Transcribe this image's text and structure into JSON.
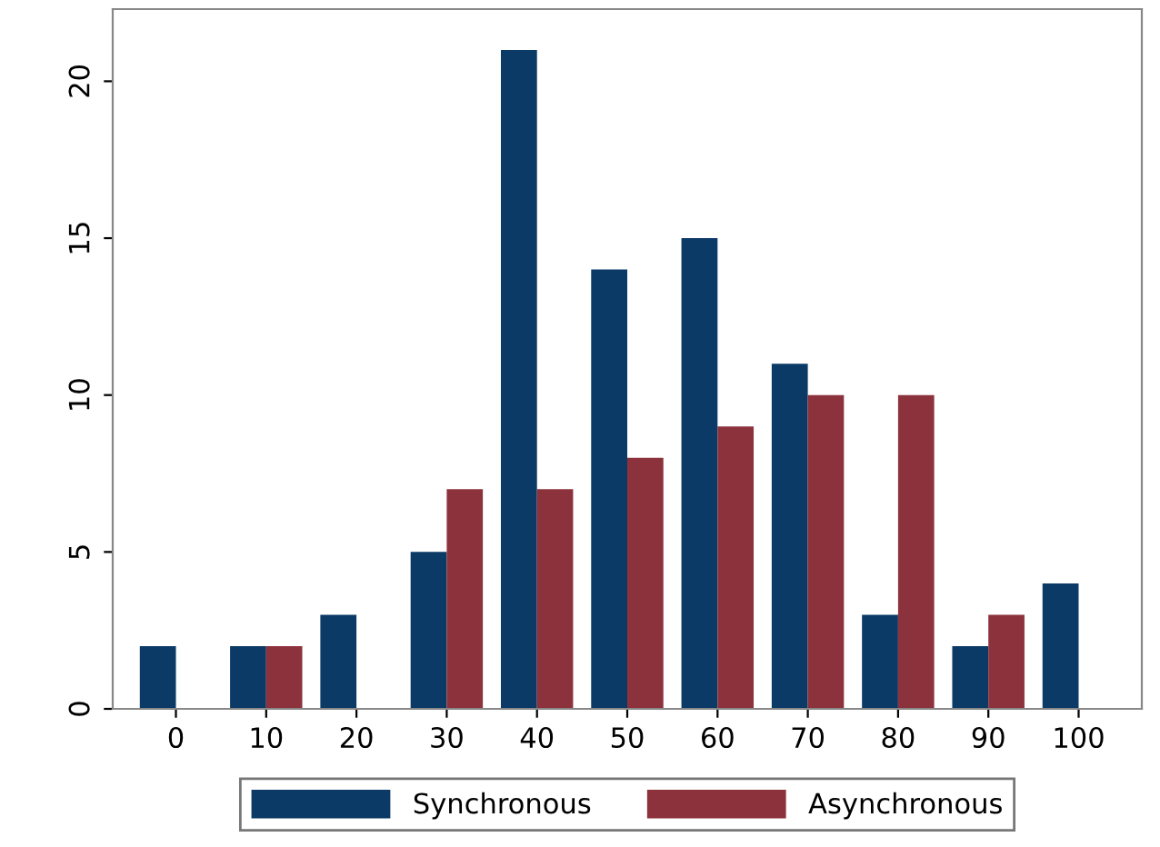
{
  "chart_data": {
    "type": "bar",
    "categories": [
      "0",
      "10",
      "20",
      "30",
      "40",
      "50",
      "60",
      "70",
      "80",
      "90",
      "100"
    ],
    "series": [
      {
        "name": "Synchronous",
        "color": "#0b3a66",
        "values": [
          2,
          2,
          3,
          5,
          21,
          14,
          15,
          11,
          3,
          2,
          4
        ]
      },
      {
        "name": "Asynchronous",
        "color": "#8c323c",
        "values": [
          null,
          2,
          null,
          7,
          7,
          8,
          9,
          10,
          10,
          3,
          null
        ]
      }
    ],
    "ylim": [
      0,
      22.3
    ],
    "yticks": [
      0,
      5,
      10,
      15,
      20
    ],
    "grid": false,
    "legend": "bottom"
  }
}
